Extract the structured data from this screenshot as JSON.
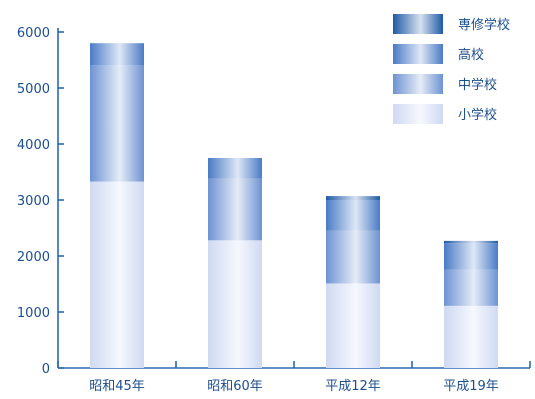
{
  "chart_data": {
    "type": "bar",
    "stacked": true,
    "categories": [
      "昭和45年",
      "昭和60年",
      "平成12年",
      "平成19年"
    ],
    "series": [
      {
        "name": "小学校",
        "values": [
          3330,
          2280,
          1510,
          1110
        ],
        "color": "#cfd9f2"
      },
      {
        "name": "中学校",
        "values": [
          2080,
          1100,
          940,
          650
        ],
        "color": "#6d93d2"
      },
      {
        "name": "高校",
        "values": [
          390,
          370,
          550,
          470
        ],
        "color": "#4a7bc6"
      },
      {
        "name": "専修学校",
        "values": [
          0,
          0,
          70,
          40
        ],
        "color": "#1f5aa6"
      }
    ],
    "yticks": [
      0,
      1000,
      2000,
      3000,
      4000,
      5000,
      6000
    ],
    "ylim": [
      0,
      6000
    ],
    "title": "",
    "xlabel": "",
    "ylabel": "",
    "legend_position": "top-right",
    "grid": false
  }
}
